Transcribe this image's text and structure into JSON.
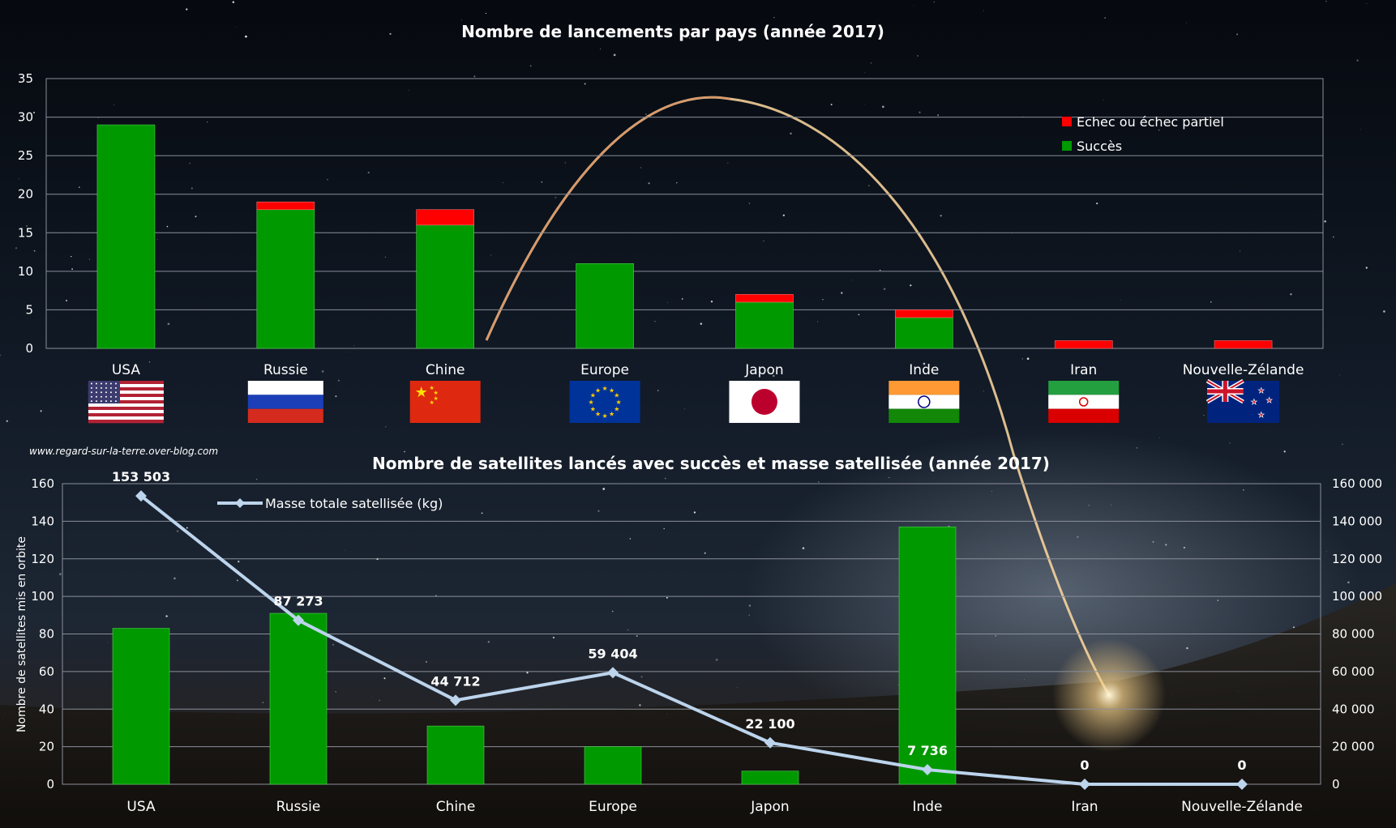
{
  "watermark": "www.regard-sur-la-terre.over-blog.com",
  "colors": {
    "success": "#009900",
    "failure": "#ff0000",
    "mass_line": "#bcd4ec",
    "grid": "#8a8f9a",
    "text": "#ffffff"
  },
  "chart_data": [
    {
      "type": "bar",
      "stacked": true,
      "title": "Nombre de lancements par pays (année 2017)",
      "categories": [
        "USA",
        "Russie",
        "Chine",
        "Europe",
        "Japon",
        "Inde",
        "Iran",
        "Nouvelle-Zélande"
      ],
      "series": [
        {
          "name": "Succès",
          "color": "#009900",
          "values": [
            29,
            18,
            16,
            11,
            6,
            4,
            0,
            0
          ]
        },
        {
          "name": "Echec ou échec partiel",
          "color": "#ff0000",
          "values": [
            0,
            1,
            2,
            0,
            1,
            1,
            1,
            1
          ]
        }
      ],
      "ylim": [
        0,
        35
      ],
      "yticks": [
        "0",
        "5",
        "10",
        "15",
        "20",
        "25",
        "30",
        "35"
      ],
      "grid": true,
      "legend": "top-right",
      "flags": [
        "us-flag",
        "russia-flag",
        "china-flag",
        "eu-flag",
        "japan-flag",
        "india-flag",
        "iran-flag",
        "new-zealand-flag"
      ]
    },
    {
      "type": "bar+line",
      "title": "Nombre de satellites lancés avec succès et masse satellisée (année 2017)",
      "categories": [
        "USA",
        "Russie",
        "Chine",
        "Europe",
        "Japon",
        "Inde",
        "Iran",
        "Nouvelle-Zélande"
      ],
      "bars": {
        "color": "#009900",
        "values": [
          83,
          91,
          31,
          20,
          7,
          137,
          0,
          0
        ]
      },
      "line": {
        "name": "Masse totale satellisée (kg)",
        "color": "#bcd4ec",
        "values": [
          153503,
          87273,
          44712,
          59404,
          22100,
          7736,
          0,
          0
        ],
        "labels": [
          "153 503",
          "87 273",
          "44 712",
          "59 404",
          "22 100",
          "7 736",
          "0",
          "0"
        ]
      },
      "ylabel": "Nombre de satellites mis en orbite",
      "ylim": [
        0,
        160
      ],
      "yticks": [
        "0",
        "20",
        "40",
        "60",
        "80",
        "100",
        "120",
        "140",
        "160"
      ],
      "y2lim": [
        0,
        160000
      ],
      "y2ticks": [
        "0",
        "20 000",
        "40 000",
        "60 000",
        "80 000",
        "100 000",
        "120 000",
        "140 000",
        "160 000"
      ],
      "grid": true,
      "legend": "top-left"
    }
  ]
}
